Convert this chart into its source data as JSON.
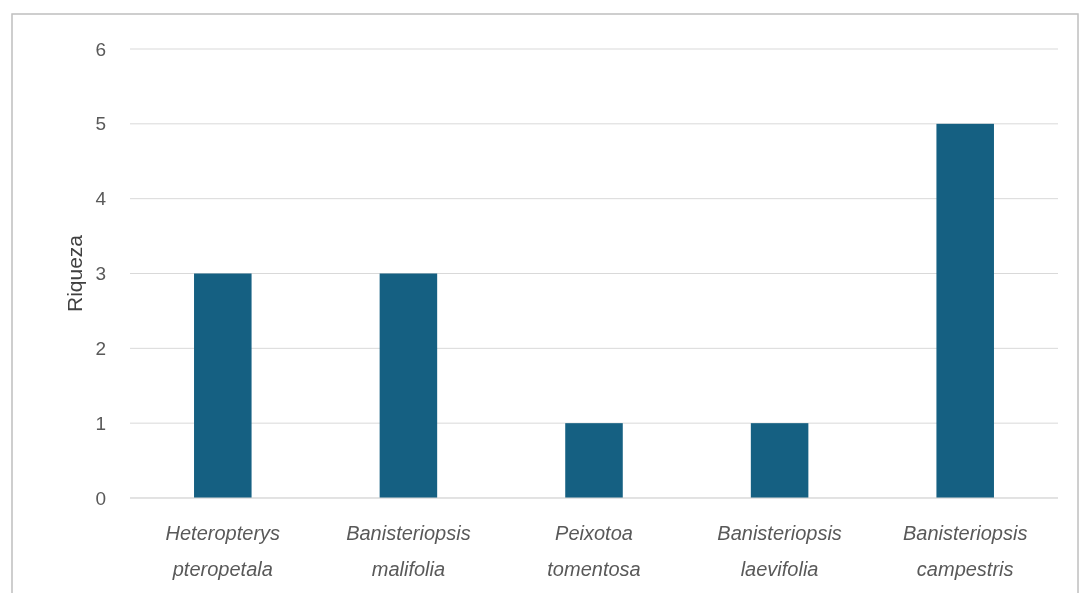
{
  "chart_data": {
    "type": "bar",
    "ylabel": "Riqueza",
    "categories": [
      "Heteropterys pteropetala",
      "Banisteriopsis malifolia",
      "Peixotoa tomentosa",
      "Banisteriopsis laevifolia",
      "Banisteriopsis campestris"
    ],
    "values": [
      3,
      3,
      1,
      1,
      5
    ],
    "color": "#156082",
    "ylim": [
      0,
      6
    ],
    "yticks": [
      0,
      1,
      2,
      3,
      4,
      5,
      6
    ],
    "grid": "y"
  }
}
